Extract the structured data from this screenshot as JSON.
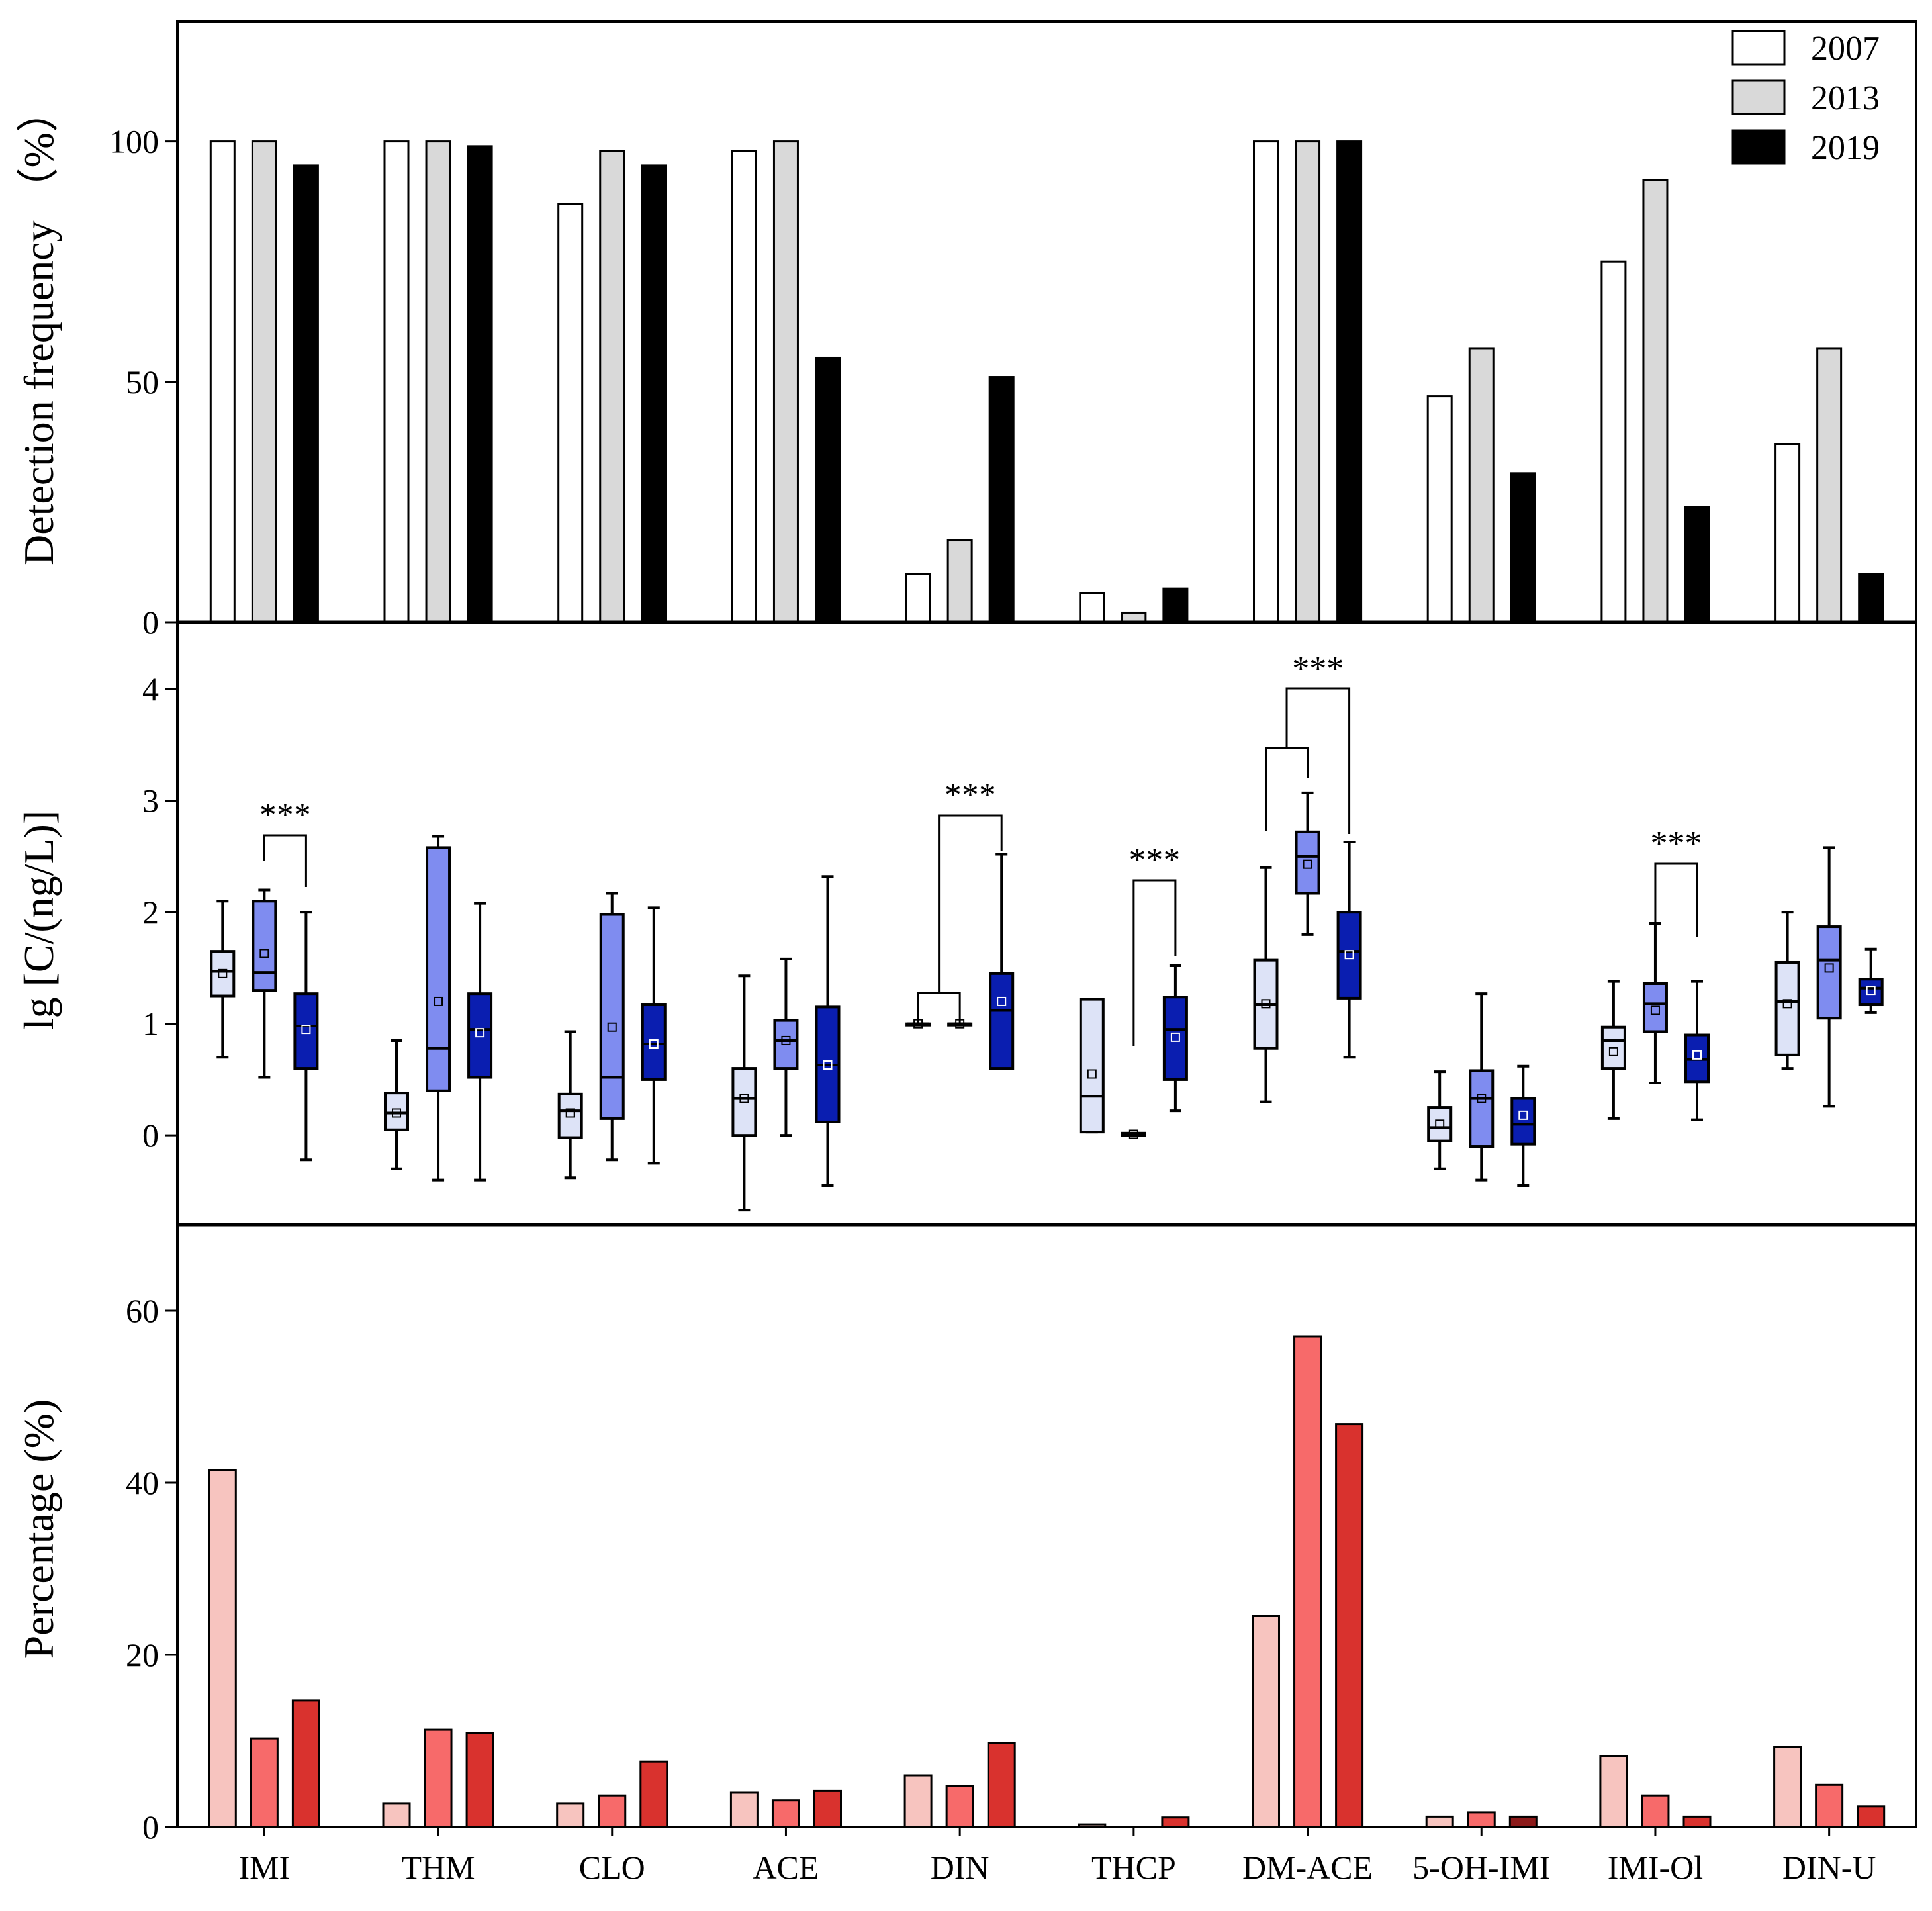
{
  "chart_data": [
    {
      "type": "bar",
      "panel": "top",
      "ylabel": "Detection frequency （%）",
      "ylim": [
        0,
        125
      ],
      "yticks": [
        0,
        50,
        100
      ],
      "categories": [
        "IMI",
        "THM",
        "CLO",
        "ACE",
        "DIN",
        "THCP",
        "DM-ACE",
        "5-OH-IMI",
        "IMI-Ol",
        "DIN-U"
      ],
      "series": [
        {
          "name": "2007",
          "color": "#ffffff",
          "values": [
            100,
            100,
            87,
            98,
            10,
            6,
            100,
            47,
            75,
            37
          ]
        },
        {
          "name": "2013",
          "color": "#d9d9d9",
          "values": [
            100,
            100,
            98,
            100,
            17,
            2,
            100,
            57,
            92,
            57
          ]
        },
        {
          "name": "2019",
          "color": "#000000",
          "values": [
            95,
            99,
            95,
            55,
            51,
            7,
            100,
            31,
            24,
            10
          ]
        }
      ],
      "legend": {
        "position": "top-right",
        "entries": [
          "2007",
          "2013",
          "2019"
        ]
      }
    },
    {
      "type": "box",
      "panel": "middle",
      "ylabel": "lg [C/(ng/L)]",
      "ylim": [
        -0.8,
        4.6
      ],
      "yticks": [
        0,
        1,
        2,
        3,
        4
      ],
      "categories": [
        "IMI",
        "THM",
        "CLO",
        "ACE",
        "DIN",
        "THCP",
        "DM-ACE",
        "5-OH-IMI",
        "IMI-Ol",
        "DIN-U"
      ],
      "series_colors": {
        "2007": "#dde3f7",
        "2013": "#7f8cf0",
        "2019": "#0a1eb0"
      },
      "groups": [
        {
          "category": "IMI",
          "boxes": [
            {
              "year": "2007",
              "min": 0.7,
              "q1": 1.25,
              "median": 1.47,
              "q3": 1.65,
              "max": 2.1,
              "mean": 1.45
            },
            {
              "year": "2013",
              "min": 0.52,
              "q1": 1.3,
              "median": 1.46,
              "q3": 2.1,
              "max": 2.2,
              "mean": 1.63
            },
            {
              "year": "2019",
              "min": -0.22,
              "q1": 0.6,
              "median": 0.98,
              "q3": 1.27,
              "max": 2.0,
              "mean": 0.95
            }
          ]
        },
        {
          "category": "THM",
          "boxes": [
            {
              "year": "2007",
              "min": -0.3,
              "q1": 0.05,
              "median": 0.2,
              "q3": 0.38,
              "max": 0.85,
              "mean": 0.2
            },
            {
              "year": "2013",
              "min": -0.4,
              "q1": 0.4,
              "median": 0.78,
              "q3": 2.58,
              "max": 2.68,
              "mean": 1.2
            },
            {
              "year": "2019",
              "min": -0.4,
              "q1": 0.52,
              "median": 0.95,
              "q3": 1.27,
              "max": 2.08,
              "mean": 0.92
            }
          ]
        },
        {
          "category": "CLO",
          "boxes": [
            {
              "year": "2007",
              "min": -0.38,
              "q1": -0.02,
              "median": 0.22,
              "q3": 0.37,
              "max": 0.93,
              "mean": 0.2
            },
            {
              "year": "2013",
              "min": -0.22,
              "q1": 0.15,
              "median": 0.52,
              "q3": 1.98,
              "max": 2.17,
              "mean": 0.97
            },
            {
              "year": "2019",
              "min": -0.25,
              "q1": 0.5,
              "median": 0.82,
              "q3": 1.17,
              "max": 2.04,
              "mean": 0.82
            }
          ]
        },
        {
          "category": "ACE",
          "boxes": [
            {
              "year": "2007",
              "min": -0.67,
              "q1": 0.0,
              "median": 0.33,
              "q3": 0.6,
              "max": 1.43,
              "mean": 0.33
            },
            {
              "year": "2013",
              "min": 0.0,
              "q1": 0.6,
              "median": 0.85,
              "q3": 1.03,
              "max": 1.58,
              "mean": 0.85
            },
            {
              "year": "2019",
              "min": -0.45,
              "q1": 0.12,
              "median": 0.63,
              "q3": 1.15,
              "max": 2.32,
              "mean": 0.63
            }
          ]
        },
        {
          "category": "DIN",
          "boxes": [
            {
              "year": "2007",
              "min": 1.0,
              "q1": 1.0,
              "median": 1.0,
              "q3": 1.0,
              "max": 1.0,
              "mean": 1.0
            },
            {
              "year": "2013",
              "min": 1.0,
              "q1": 1.0,
              "median": 1.0,
              "q3": 1.0,
              "max": 1.0,
              "mean": 1.0
            },
            {
              "year": "2019",
              "min": 0.6,
              "q1": 0.6,
              "median": 1.12,
              "q3": 1.45,
              "max": 2.52,
              "mean": 1.2
            }
          ]
        },
        {
          "category": "THCP",
          "boxes": [
            {
              "year": "2007",
              "min": 0.03,
              "q1": 0.03,
              "median": 0.35,
              "q3": 1.22,
              "max": 1.22,
              "mean": 0.55
            },
            {
              "year": "2013",
              "min": 0.0,
              "q1": 0.0,
              "median": 0.01,
              "q3": 0.02,
              "max": 0.02,
              "mean": 0.01
            },
            {
              "year": "2019",
              "min": 0.22,
              "q1": 0.5,
              "median": 0.95,
              "q3": 1.24,
              "max": 1.52,
              "mean": 0.88
            }
          ]
        },
        {
          "category": "DM-ACE",
          "boxes": [
            {
              "year": "2007",
              "min": 0.3,
              "q1": 0.78,
              "median": 1.17,
              "q3": 1.57,
              "max": 2.4,
              "mean": 1.18
            },
            {
              "year": "2013",
              "min": 1.8,
              "q1": 2.17,
              "median": 2.5,
              "q3": 2.72,
              "max": 3.07,
              "mean": 2.43
            },
            {
              "year": "2019",
              "min": 0.7,
              "q1": 1.23,
              "median": 1.65,
              "q3": 2.0,
              "max": 2.63,
              "mean": 1.62
            }
          ]
        },
        {
          "category": "5-OH-IMI",
          "boxes": [
            {
              "year": "2007",
              "min": -0.3,
              "q1": -0.05,
              "median": 0.07,
              "q3": 0.25,
              "max": 0.57,
              "mean": 0.1
            },
            {
              "year": "2013",
              "min": -0.4,
              "q1": -0.1,
              "median": 0.33,
              "q3": 0.58,
              "max": 1.27,
              "mean": 0.33
            },
            {
              "year": "2019",
              "min": -0.45,
              "q1": -0.08,
              "median": 0.1,
              "q3": 0.33,
              "max": 0.62,
              "mean": 0.18
            }
          ]
        },
        {
          "category": "IMI-Ol",
          "boxes": [
            {
              "year": "2007",
              "min": 0.15,
              "q1": 0.6,
              "median": 0.85,
              "q3": 0.97,
              "max": 1.38,
              "mean": 0.75
            },
            {
              "year": "2013",
              "min": 0.47,
              "q1": 0.93,
              "median": 1.18,
              "q3": 1.36,
              "max": 1.9,
              "mean": 1.12
            },
            {
              "year": "2019",
              "min": 0.14,
              "q1": 0.48,
              "median": 0.68,
              "q3": 0.9,
              "max": 1.38,
              "mean": 0.72
            }
          ]
        },
        {
          "category": "DIN-U",
          "boxes": [
            {
              "year": "2007",
              "min": 0.6,
              "q1": 0.72,
              "median": 1.2,
              "q3": 1.55,
              "max": 2.0,
              "mean": 1.18
            },
            {
              "year": "2013",
              "min": 0.26,
              "q1": 1.05,
              "median": 1.57,
              "q3": 1.87,
              "max": 2.58,
              "mean": 1.5
            },
            {
              "year": "2019",
              "min": 1.1,
              "q1": 1.17,
              "median": 1.32,
              "q3": 1.4,
              "max": 1.67,
              "mean": 1.3
            }
          ]
        }
      ],
      "significance": [
        {
          "category": "IMI",
          "pairs": [
            [
              "2013",
              "2019"
            ]
          ],
          "label": "***"
        },
        {
          "category": "DIN",
          "pairs": [
            [
              "2007-2013",
              "2019"
            ]
          ],
          "label": "***"
        },
        {
          "category": "THCP",
          "pairs": [
            [
              "2013",
              "2019"
            ]
          ],
          "label": "***"
        },
        {
          "category": "DM-ACE",
          "pairs": [
            [
              "2007",
              "2013"
            ],
            [
              "2007-2013",
              "2019"
            ]
          ],
          "label": "***"
        },
        {
          "category": "IMI-Ol",
          "pairs": [
            [
              "2013",
              "2019"
            ]
          ],
          "label": "***"
        }
      ]
    },
    {
      "type": "bar",
      "panel": "bottom",
      "ylabel": "Percentage (%)",
      "ylim": [
        0,
        70
      ],
      "yticks": [
        0,
        20,
        40,
        60
      ],
      "categories": [
        "IMI",
        "THM",
        "CLO",
        "ACE",
        "DIN",
        "THCP",
        "DM-ACE",
        "5-OH-IMI",
        "IMI-Ol",
        "DIN-U"
      ],
      "category_labels": [
        "IMI",
        "THM",
        "CLO",
        "ACE",
        "DIN",
        "THCP",
        "DM-ACE",
        "5-OH-IMI",
        "IMI-Ol",
        "DIN-U"
      ],
      "series": [
        {
          "name": "2007",
          "color": "#f7c4bf",
          "values": [
            41.5,
            2.7,
            2.7,
            4.0,
            6.0,
            0.3,
            24.5,
            1.2,
            8.2,
            9.3
          ]
        },
        {
          "name": "2013",
          "color": "#f76a6a",
          "values": [
            10.3,
            11.3,
            3.6,
            3.1,
            4.8,
            0.0,
            57.0,
            1.7,
            3.6,
            4.9
          ]
        },
        {
          "name": "2019",
          "color": "#d9322e",
          "values": [
            14.7,
            10.9,
            7.6,
            4.2,
            9.8,
            1.1,
            46.8,
            1.2,
            1.2,
            2.4
          ]
        }
      ]
    }
  ]
}
